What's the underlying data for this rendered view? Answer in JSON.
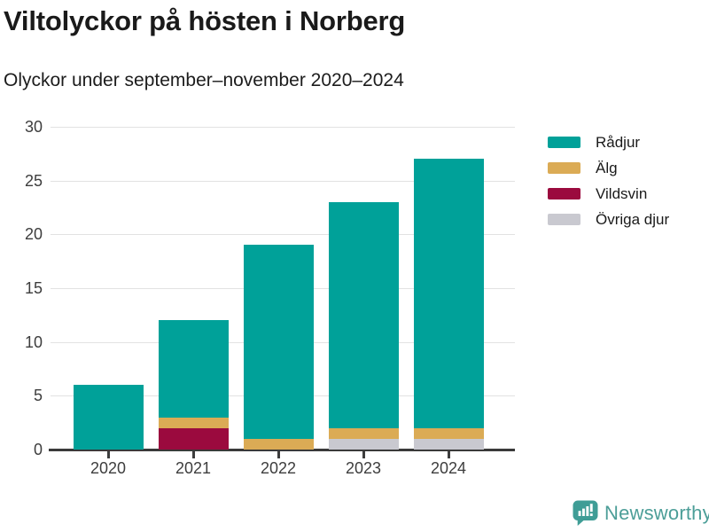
{
  "header": {
    "title": "Viltolyckor på hösten i Norberg",
    "subtitle": "Olyckor under september–november 2020–2024"
  },
  "chart_data": {
    "type": "bar",
    "stacked": true,
    "title": "Viltolyckor på hösten i Norberg",
    "subtitle": "Olyckor under september–november 2020–2024",
    "categories": [
      "2020",
      "2021",
      "2022",
      "2023",
      "2024"
    ],
    "series": [
      {
        "name": "Rådjur",
        "color": "#00a199",
        "values": [
          6,
          9,
          18,
          21,
          25
        ]
      },
      {
        "name": "Älg",
        "color": "#dbab55",
        "values": [
          0,
          1,
          1,
          1,
          1
        ]
      },
      {
        "name": "Vildsvin",
        "color": "#9b0a3e",
        "values": [
          0,
          2,
          0,
          0,
          0
        ]
      },
      {
        "name": "Övriga djur",
        "color": "#c9c9d0",
        "values": [
          0,
          0,
          0,
          1,
          1
        ]
      }
    ],
    "stack_order_bottom_to_top": [
      "Övriga djur",
      "Vildsvin",
      "Älg",
      "Rådjur"
    ],
    "totals": [
      6,
      12,
      19,
      23,
      27
    ],
    "xlabel": "",
    "ylabel": "",
    "ylim": [
      0,
      30
    ],
    "yticks": [
      0,
      5,
      10,
      15,
      20,
      25,
      30
    ],
    "grid": true,
    "legend_position": "right"
  },
  "colors": {
    "background": "#ffffff",
    "gridline": "#e2e2e2",
    "axis": "#3a3a3a",
    "tick_text": "#3d3d3d",
    "text": "#1a1a1a",
    "brand_icon": "#3f9d96",
    "brand_text": "#4c9e98"
  },
  "footer": {
    "brand": "Newsworthy"
  }
}
